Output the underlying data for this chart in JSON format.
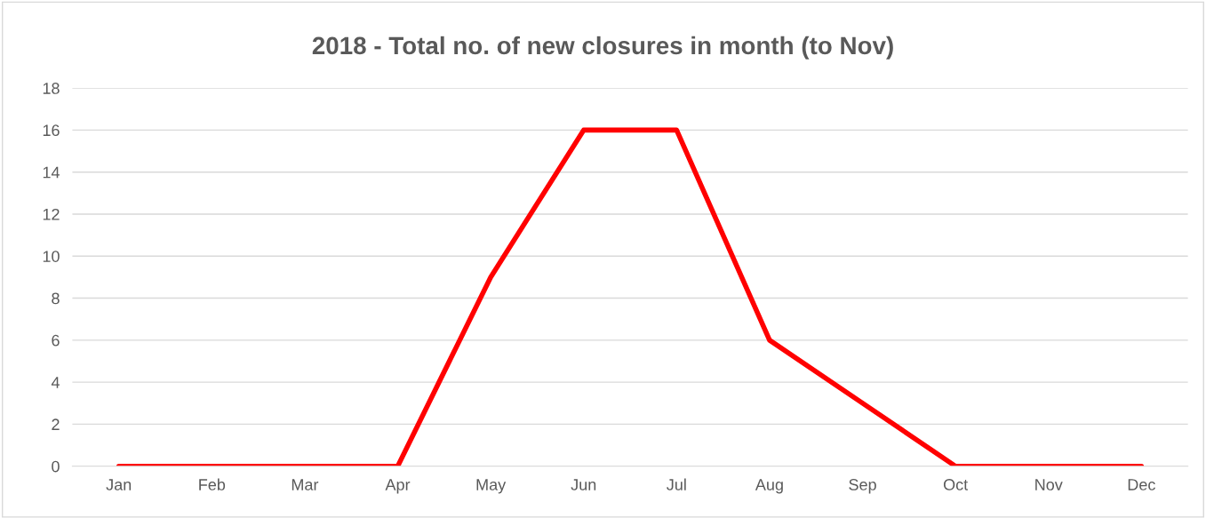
{
  "chart_data": {
    "type": "line",
    "title": "2018 - Total no. of new closures in month (to Nov)",
    "categories": [
      "Jan",
      "Feb",
      "Mar",
      "Apr",
      "May",
      "Jun",
      "Jul",
      "Aug",
      "Sep",
      "Oct",
      "Nov",
      "Dec"
    ],
    "series": [
      {
        "color": "#ff0000",
        "values": [
          0,
          0,
          0,
          0,
          9,
          16,
          16,
          6,
          3,
          0,
          0,
          0
        ]
      }
    ],
    "ylim": [
      0,
      18
    ],
    "yticks": [
      0,
      2,
      4,
      6,
      8,
      10,
      12,
      14,
      16,
      18
    ],
    "grid": "y",
    "legend": false,
    "marker": "none",
    "line_style": "solid"
  }
}
